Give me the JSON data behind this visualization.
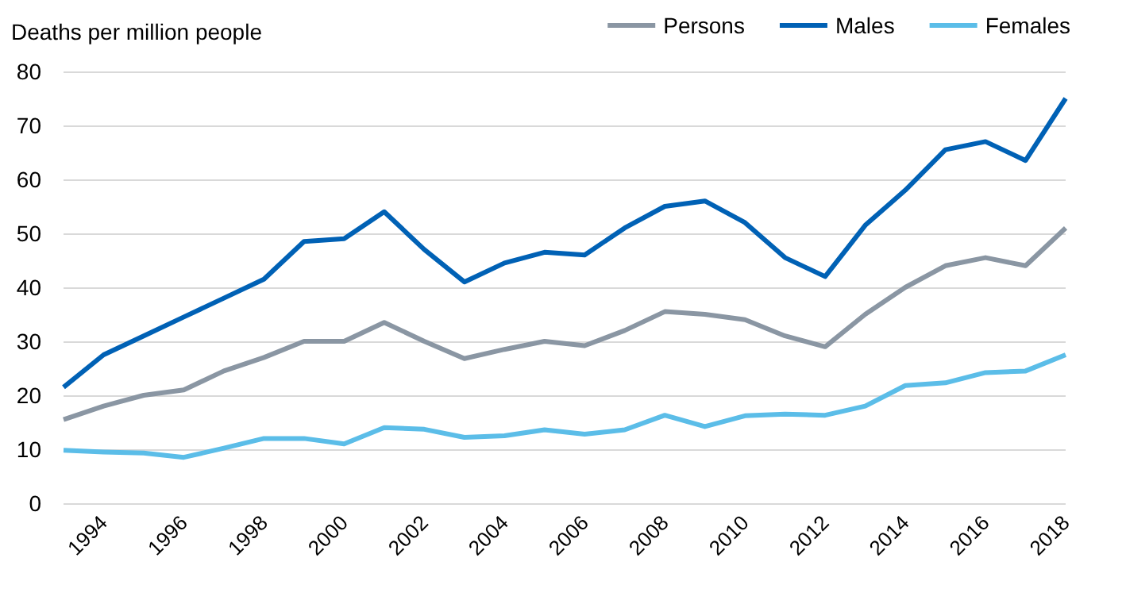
{
  "chart_data": {
    "type": "line",
    "ylabel": "Deaths per million people",
    "categories": [
      null,
      "1994",
      null,
      "1996",
      null,
      "1998",
      null,
      "2000",
      null,
      "2002",
      null,
      "2004",
      null,
      "2006",
      null,
      "2008",
      null,
      "2010",
      null,
      "2012",
      null,
      "2014",
      null,
      "2016",
      null,
      "2018"
    ],
    "series": [
      {
        "name": "Persons",
        "color": "#8a96a3",
        "values": [
          15.5,
          18,
          20,
          21,
          24.5,
          27,
          30,
          30,
          33.5,
          30,
          26.8,
          28.5,
          30,
          29.2,
          32,
          35.5,
          35,
          34,
          31,
          29,
          35,
          40,
          44,
          45.5,
          44,
          51
        ]
      },
      {
        "name": "Males",
        "color": "#0061b5",
        "values": [
          21.5,
          27.5,
          31,
          34.5,
          38,
          41.5,
          48.5,
          49,
          54,
          47,
          41,
          44.5,
          46.5,
          46,
          51,
          55,
          56,
          52,
          45.5,
          42,
          51.5,
          58,
          65.5,
          67,
          63.5,
          75
        ]
      },
      {
        "name": "Females",
        "color": "#5bbde8",
        "values": [
          9.8,
          9.5,
          9.3,
          8.5,
          10.2,
          12,
          12,
          11,
          14,
          13.7,
          12.2,
          12.5,
          13.6,
          12.8,
          13.6,
          16.3,
          14.2,
          16.2,
          16.5,
          16.3,
          18,
          21.8,
          22.3,
          24.2,
          24.5,
          27.5
        ]
      }
    ],
    "ylim": [
      0,
      80
    ],
    "yticks": [
      0,
      10,
      20,
      30,
      40,
      50,
      60,
      70,
      80
    ],
    "grid": "y",
    "legend": "top right",
    "marker": "none",
    "line_style": "solid"
  }
}
